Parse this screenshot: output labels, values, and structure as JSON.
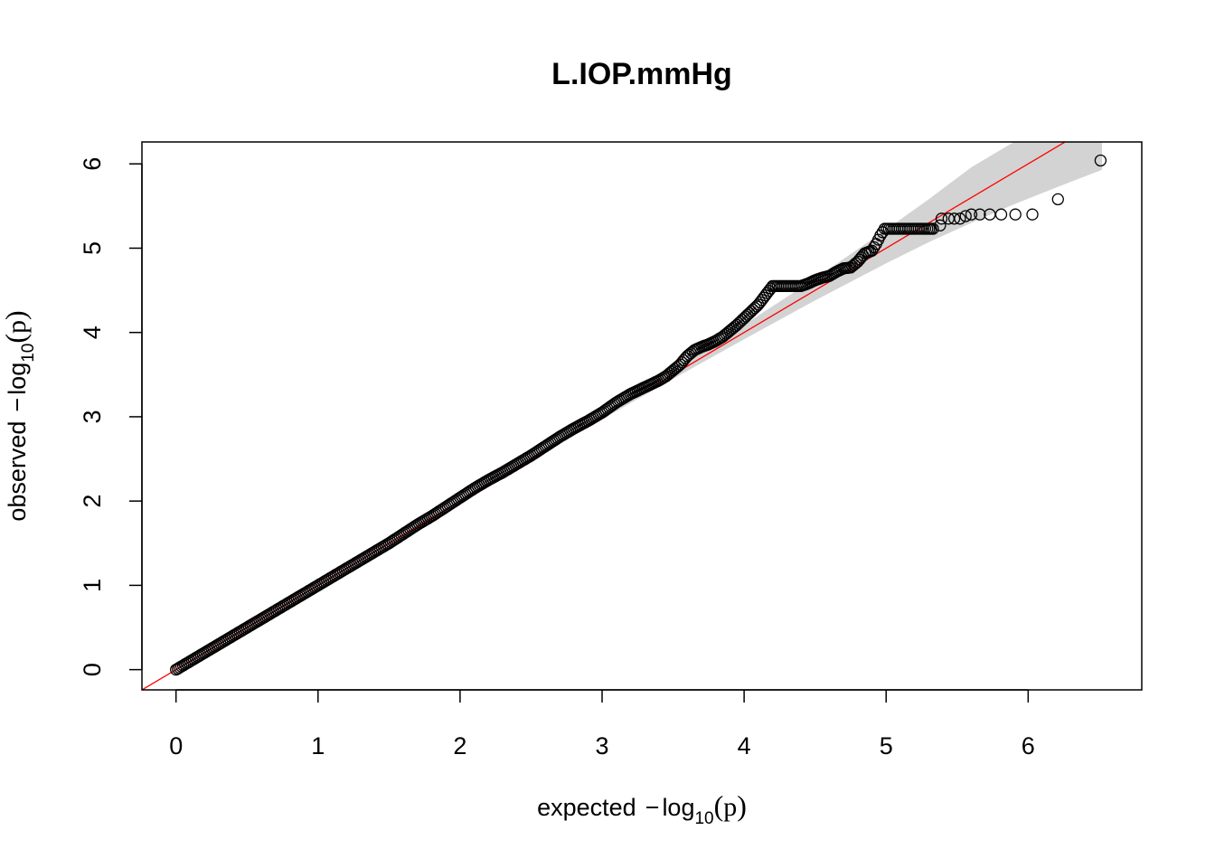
{
  "chart_data": {
    "type": "scatter",
    "title": "L.IOP.mmHg",
    "xlabel": {
      "prefix": "expected",
      "minus": "−",
      "log": "log",
      "base": "10",
      "open": "(",
      "var": "p",
      "close": ")"
    },
    "ylabel": {
      "prefix": "observed",
      "minus": "−",
      "log": "log",
      "base": "10",
      "open": "(",
      "var": "p",
      "close": ")"
    },
    "xlim": [
      -0.24,
      6.8
    ],
    "ylim": [
      -0.24,
      6.26
    ],
    "xticks": [
      0,
      1,
      2,
      3,
      4,
      5,
      6
    ],
    "yticks": [
      0,
      1,
      2,
      3,
      4,
      5,
      6
    ],
    "grid": false,
    "legend": "none",
    "reference_line": {
      "slope": 1,
      "intercept": 0,
      "color": "#ff0000"
    },
    "confidence_band": {
      "color": "#d3d3d3",
      "x": [
        2.0,
        3.0,
        3.5,
        4.0,
        4.5,
        5.0,
        5.3,
        5.6,
        5.9,
        6.2,
        6.52
      ],
      "lower": [
        1.99,
        2.97,
        3.45,
        3.92,
        4.38,
        4.82,
        5.07,
        5.3,
        5.52,
        5.72,
        5.93
      ],
      "upper": [
        2.01,
        3.03,
        3.56,
        4.09,
        4.64,
        5.22,
        5.58,
        5.96,
        6.26,
        6.26,
        6.26
      ]
    },
    "series": [
      {
        "points": [
          [
            0.0,
            0.0
          ],
          [
            0.1,
            0.1
          ],
          [
            0.2,
            0.2
          ],
          [
            0.3,
            0.3
          ],
          [
            0.4,
            0.4
          ],
          [
            0.5,
            0.5
          ],
          [
            0.6,
            0.6
          ],
          [
            0.7,
            0.7
          ],
          [
            0.8,
            0.8
          ],
          [
            0.9,
            0.9
          ],
          [
            1.0,
            1.0
          ],
          [
            1.1,
            1.1
          ],
          [
            1.2,
            1.2
          ],
          [
            1.3,
            1.3
          ],
          [
            1.4,
            1.4
          ],
          [
            1.5,
            1.5
          ],
          [
            1.6,
            1.61
          ],
          [
            1.7,
            1.72
          ],
          [
            1.8,
            1.82
          ],
          [
            1.9,
            1.93
          ],
          [
            2.0,
            2.04
          ],
          [
            2.1,
            2.15
          ],
          [
            2.2,
            2.25
          ],
          [
            2.3,
            2.34
          ],
          [
            2.4,
            2.44
          ],
          [
            2.5,
            2.54
          ],
          [
            2.6,
            2.65
          ],
          [
            2.7,
            2.76
          ],
          [
            2.8,
            2.86
          ],
          [
            2.9,
            2.95
          ],
          [
            3.0,
            3.05
          ],
          [
            3.05,
            3.11
          ],
          [
            3.1,
            3.17
          ],
          [
            3.15,
            3.22
          ],
          [
            3.2,
            3.27
          ],
          [
            3.25,
            3.31
          ],
          [
            3.3,
            3.35
          ],
          [
            3.35,
            3.39
          ],
          [
            3.4,
            3.43
          ],
          [
            3.45,
            3.48
          ],
          [
            3.5,
            3.55
          ],
          [
            3.55,
            3.62
          ],
          [
            3.6,
            3.72
          ],
          [
            3.65,
            3.79
          ],
          [
            3.7,
            3.83
          ],
          [
            3.75,
            3.86
          ],
          [
            3.8,
            3.9
          ],
          [
            3.85,
            3.95
          ],
          [
            3.9,
            4.02
          ],
          [
            3.95,
            4.09
          ],
          [
            4.0,
            4.17
          ],
          [
            4.05,
            4.25
          ],
          [
            4.1,
            4.33
          ],
          [
            4.15,
            4.44
          ],
          [
            4.2,
            4.55
          ],
          [
            4.25,
            4.55
          ],
          [
            4.3,
            4.55
          ],
          [
            4.35,
            4.55
          ],
          [
            4.4,
            4.55
          ],
          [
            4.45,
            4.58
          ],
          [
            4.5,
            4.62
          ],
          [
            4.55,
            4.65
          ],
          [
            4.6,
            4.67
          ],
          [
            4.65,
            4.72
          ],
          [
            4.7,
            4.76
          ],
          [
            4.75,
            4.77
          ],
          [
            4.8,
            4.84
          ],
          [
            4.85,
            4.94
          ],
          [
            4.9,
            4.97
          ],
          [
            4.93,
            5.05
          ],
          [
            4.96,
            5.15
          ],
          [
            4.99,
            5.23
          ],
          [
            5.02,
            5.23
          ],
          [
            5.05,
            5.23
          ],
          [
            5.08,
            5.23
          ],
          [
            5.11,
            5.23
          ],
          [
            5.14,
            5.23
          ],
          [
            5.17,
            5.23
          ],
          [
            5.2,
            5.23
          ],
          [
            5.23,
            5.23
          ],
          [
            5.26,
            5.23
          ],
          [
            5.29,
            5.23
          ],
          [
            5.33,
            5.23
          ],
          [
            5.38,
            5.27
          ],
          [
            5.39,
            5.35
          ],
          [
            5.44,
            5.35
          ],
          [
            5.48,
            5.35
          ],
          [
            5.52,
            5.35
          ],
          [
            5.56,
            5.38
          ],
          [
            5.6,
            5.4
          ],
          [
            5.66,
            5.4
          ],
          [
            5.73,
            5.4
          ],
          [
            5.81,
            5.4
          ],
          [
            5.91,
            5.4
          ],
          [
            6.03,
            5.4
          ],
          [
            6.21,
            5.58
          ],
          [
            6.51,
            6.04
          ]
        ]
      }
    ]
  }
}
